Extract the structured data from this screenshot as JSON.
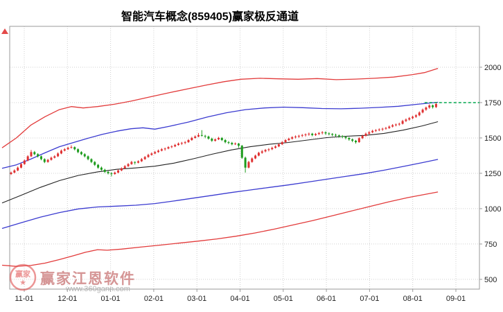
{
  "title": "智能汽车概念(859405)赢家极反通道",
  "watermark": {
    "brand": "赢家江恩软件",
    "url": "www.360gann.com",
    "stamp_label": "赢家"
  },
  "colors": {
    "up": "#df3031",
    "down": "#1c9b1c",
    "band_upper_red": "#e23a3a",
    "band_upper_blue": "#3a3ad0",
    "band_middle_black": "#222222",
    "band_lower_blue": "#3a3ad0",
    "band_lower_red": "#e23a3a",
    "forecast_green": "#00a94f",
    "grid": "#cfcfcf",
    "axis": "#9a9a9a",
    "tick_text": "#222222",
    "stamp_red": "#e05050"
  },
  "chart_data": {
    "type": "candlestick",
    "title": "智能汽车概念(859405)赢家极反通道",
    "xlabel": "",
    "ylabel": "",
    "grid": true,
    "legend_position": "none",
    "y_axis_side": "right",
    "x_ticks": [
      "11-01",
      "12-01",
      "01-01",
      "02-01",
      "03-01",
      "04-01",
      "05-01",
      "06-01",
      "07-01",
      "08-01",
      "09-01"
    ],
    "y_ticks": [
      2000,
      1750,
      1500,
      1250,
      1000,
      750,
      500
    ],
    "ylim": [
      431,
      2289
    ],
    "candles_ohlc_note": "each candle is [open,high,low,close], daily bars from late Oct to late Aug",
    "candles": [
      [
        1245,
        1262,
        1238,
        1255
      ],
      [
        1255,
        1278,
        1250,
        1270
      ],
      [
        1270,
        1298,
        1265,
        1290
      ],
      [
        1290,
        1322,
        1285,
        1315
      ],
      [
        1315,
        1348,
        1310,
        1340
      ],
      [
        1340,
        1378,
        1335,
        1370
      ],
      [
        1370,
        1415,
        1365,
        1400
      ],
      [
        1400,
        1408,
        1378,
        1385
      ],
      [
        1385,
        1392,
        1362,
        1370
      ],
      [
        1370,
        1376,
        1342,
        1350
      ],
      [
        1350,
        1356,
        1322,
        1330
      ],
      [
        1330,
        1352,
        1325,
        1345
      ],
      [
        1345,
        1368,
        1340,
        1360
      ],
      [
        1360,
        1378,
        1355,
        1370
      ],
      [
        1370,
        1398,
        1365,
        1390
      ],
      [
        1390,
        1418,
        1385,
        1410
      ],
      [
        1410,
        1428,
        1405,
        1420
      ],
      [
        1420,
        1438,
        1415,
        1430
      ],
      [
        1430,
        1448,
        1425,
        1435
      ],
      [
        1435,
        1440,
        1412,
        1420
      ],
      [
        1420,
        1426,
        1392,
        1400
      ],
      [
        1400,
        1406,
        1378,
        1385
      ],
      [
        1385,
        1392,
        1362,
        1370
      ],
      [
        1370,
        1376,
        1342,
        1350
      ],
      [
        1350,
        1356,
        1322,
        1330
      ],
      [
        1330,
        1336,
        1302,
        1310
      ],
      [
        1310,
        1316,
        1282,
        1290
      ],
      [
        1290,
        1298,
        1268,
        1275
      ],
      [
        1275,
        1282,
        1252,
        1260
      ],
      [
        1260,
        1266,
        1242,
        1250
      ],
      [
        1250,
        1258,
        1228,
        1245
      ],
      [
        1245,
        1262,
        1240,
        1255
      ],
      [
        1255,
        1278,
        1250,
        1270
      ],
      [
        1270,
        1292,
        1265,
        1285
      ],
      [
        1285,
        1308,
        1280,
        1300
      ],
      [
        1300,
        1322,
        1295,
        1315
      ],
      [
        1315,
        1338,
        1310,
        1330
      ],
      [
        1330,
        1334,
        1312,
        1325
      ],
      [
        1325,
        1342,
        1320,
        1335
      ],
      [
        1335,
        1358,
        1330,
        1350
      ],
      [
        1350,
        1372,
        1345,
        1365
      ],
      [
        1365,
        1388,
        1360,
        1380
      ],
      [
        1380,
        1398,
        1375,
        1390
      ],
      [
        1390,
        1408,
        1385,
        1400
      ],
      [
        1400,
        1418,
        1395,
        1410
      ],
      [
        1410,
        1428,
        1405,
        1420
      ],
      [
        1420,
        1432,
        1410,
        1425
      ],
      [
        1425,
        1442,
        1420,
        1435
      ],
      [
        1435,
        1448,
        1428,
        1440
      ],
      [
        1440,
        1458,
        1435,
        1450
      ],
      [
        1450,
        1468,
        1445,
        1460
      ],
      [
        1460,
        1472,
        1450,
        1465
      ],
      [
        1465,
        1478,
        1456,
        1470
      ],
      [
        1470,
        1492,
        1465,
        1485
      ],
      [
        1485,
        1508,
        1480,
        1500
      ],
      [
        1500,
        1518,
        1495,
        1510
      ],
      [
        1510,
        1535,
        1505,
        1520
      ],
      [
        1520,
        1555,
        1510,
        1515
      ],
      [
        1515,
        1522,
        1498,
        1510
      ],
      [
        1510,
        1516,
        1488,
        1495
      ],
      [
        1495,
        1502,
        1472,
        1480
      ],
      [
        1480,
        1496,
        1474,
        1490
      ],
      [
        1490,
        1508,
        1485,
        1500
      ],
      [
        1500,
        1506,
        1478,
        1485
      ],
      [
        1485,
        1492,
        1462,
        1470
      ],
      [
        1470,
        1478,
        1456,
        1465
      ],
      [
        1465,
        1472,
        1448,
        1455
      ],
      [
        1455,
        1468,
        1450,
        1460
      ],
      [
        1460,
        1465,
        1430,
        1445
      ],
      [
        1445,
        1450,
        1352,
        1360
      ],
      [
        1360,
        1368,
        1255,
        1290
      ],
      [
        1290,
        1338,
        1285,
        1330
      ],
      [
        1330,
        1362,
        1325,
        1355
      ],
      [
        1355,
        1382,
        1350,
        1375
      ],
      [
        1375,
        1402,
        1370,
        1395
      ],
      [
        1395,
        1415,
        1388,
        1405
      ],
      [
        1405,
        1422,
        1398,
        1415
      ],
      [
        1415,
        1428,
        1405,
        1420
      ],
      [
        1420,
        1438,
        1414,
        1430
      ],
      [
        1430,
        1448,
        1425,
        1440
      ],
      [
        1440,
        1462,
        1435,
        1455
      ],
      [
        1455,
        1478,
        1450,
        1470
      ],
      [
        1470,
        1492,
        1465,
        1485
      ],
      [
        1485,
        1502,
        1478,
        1495
      ],
      [
        1495,
        1512,
        1488,
        1505
      ],
      [
        1505,
        1518,
        1496,
        1510
      ],
      [
        1510,
        1522,
        1500,
        1515
      ],
      [
        1515,
        1528,
        1506,
        1520
      ],
      [
        1520,
        1532,
        1510,
        1525
      ],
      [
        1525,
        1538,
        1515,
        1530
      ],
      [
        1530,
        1536,
        1512,
        1520
      ],
      [
        1520,
        1535,
        1514,
        1528
      ],
      [
        1528,
        1542,
        1520,
        1535
      ],
      [
        1535,
        1548,
        1525,
        1540
      ],
      [
        1540,
        1546,
        1522,
        1532
      ],
      [
        1532,
        1540,
        1518,
        1528
      ],
      [
        1528,
        1534,
        1512,
        1522
      ],
      [
        1522,
        1530,
        1508,
        1518
      ],
      [
        1518,
        1524,
        1502,
        1512
      ],
      [
        1512,
        1520,
        1498,
        1508
      ],
      [
        1508,
        1514,
        1490,
        1500
      ],
      [
        1500,
        1506,
        1480,
        1490
      ],
      [
        1490,
        1496,
        1470,
        1480
      ],
      [
        1480,
        1486,
        1460,
        1470
      ],
      [
        1470,
        1505,
        1466,
        1498
      ],
      [
        1498,
        1522,
        1492,
        1515
      ],
      [
        1515,
        1538,
        1510,
        1530
      ],
      [
        1530,
        1548,
        1524,
        1540
      ],
      [
        1540,
        1558,
        1534,
        1550
      ],
      [
        1550,
        1562,
        1542,
        1555
      ],
      [
        1555,
        1568,
        1548,
        1560
      ],
      [
        1560,
        1572,
        1550,
        1565
      ],
      [
        1565,
        1578,
        1558,
        1570
      ],
      [
        1570,
        1588,
        1564,
        1580
      ],
      [
        1580,
        1598,
        1574,
        1590
      ],
      [
        1590,
        1602,
        1582,
        1595
      ],
      [
        1595,
        1608,
        1586,
        1600
      ],
      [
        1600,
        1628,
        1595,
        1620
      ],
      [
        1620,
        1638,
        1612,
        1630
      ],
      [
        1630,
        1648,
        1622,
        1640
      ],
      [
        1640,
        1658,
        1632,
        1650
      ],
      [
        1650,
        1668,
        1642,
        1660
      ],
      [
        1660,
        1688,
        1654,
        1680
      ],
      [
        1680,
        1708,
        1674,
        1700
      ],
      [
        1700,
        1722,
        1692,
        1715
      ],
      [
        1715,
        1738,
        1706,
        1730
      ],
      [
        1730,
        1736,
        1708,
        1718
      ],
      [
        1718,
        1748,
        1712,
        1740
      ]
    ],
    "bands": [
      {
        "name": "upper-rail-red",
        "color": "#e23a3a",
        "width": 1.3,
        "points": [
          [
            0,
            1430
          ],
          [
            0.03,
            1500
          ],
          [
            0.06,
            1590
          ],
          [
            0.09,
            1650
          ],
          [
            0.12,
            1700
          ],
          [
            0.145,
            1722
          ],
          [
            0.17,
            1712
          ],
          [
            0.2,
            1722
          ],
          [
            0.235,
            1738
          ],
          [
            0.27,
            1760
          ],
          [
            0.31,
            1790
          ],
          [
            0.35,
            1820
          ],
          [
            0.39,
            1848
          ],
          [
            0.43,
            1875
          ],
          [
            0.465,
            1898
          ],
          [
            0.5,
            1915
          ],
          [
            0.54,
            1922
          ],
          [
            0.58,
            1918
          ],
          [
            0.62,
            1915
          ],
          [
            0.66,
            1920
          ],
          [
            0.7,
            1912
          ],
          [
            0.74,
            1916
          ],
          [
            0.78,
            1922
          ],
          [
            0.82,
            1930
          ],
          [
            0.86,
            1948
          ],
          [
            0.885,
            1962
          ],
          [
            0.913,
            1992
          ]
        ]
      },
      {
        "name": "upper-channel-blue",
        "color": "#3a3ad0",
        "width": 1.3,
        "points": [
          [
            0,
            1285
          ],
          [
            0.03,
            1310
          ],
          [
            0.06,
            1350
          ],
          [
            0.09,
            1395
          ],
          [
            0.12,
            1438
          ],
          [
            0.15,
            1468
          ],
          [
            0.18,
            1498
          ],
          [
            0.21,
            1525
          ],
          [
            0.24,
            1548
          ],
          [
            0.27,
            1565
          ],
          [
            0.295,
            1572
          ],
          [
            0.32,
            1562
          ],
          [
            0.35,
            1582
          ],
          [
            0.39,
            1612
          ],
          [
            0.43,
            1648
          ],
          [
            0.47,
            1678
          ],
          [
            0.51,
            1700
          ],
          [
            0.55,
            1712
          ],
          [
            0.59,
            1718
          ],
          [
            0.63,
            1714
          ],
          [
            0.67,
            1708
          ],
          [
            0.71,
            1706
          ],
          [
            0.75,
            1710
          ],
          [
            0.79,
            1716
          ],
          [
            0.83,
            1724
          ],
          [
            0.87,
            1738
          ],
          [
            0.913,
            1752
          ]
        ]
      },
      {
        "name": "middle-line-black",
        "color": "#222222",
        "width": 1.1,
        "points": [
          [
            0,
            1040
          ],
          [
            0.04,
            1095
          ],
          [
            0.08,
            1150
          ],
          [
            0.12,
            1198
          ],
          [
            0.16,
            1235
          ],
          [
            0.2,
            1260
          ],
          [
            0.24,
            1278
          ],
          [
            0.28,
            1288
          ],
          [
            0.32,
            1300
          ],
          [
            0.36,
            1322
          ],
          [
            0.4,
            1352
          ],
          [
            0.44,
            1385
          ],
          [
            0.48,
            1415
          ],
          [
            0.52,
            1438
          ],
          [
            0.56,
            1455
          ],
          [
            0.6,
            1468
          ],
          [
            0.64,
            1485
          ],
          [
            0.68,
            1502
          ],
          [
            0.72,
            1512
          ],
          [
            0.76,
            1518
          ],
          [
            0.8,
            1532
          ],
          [
            0.84,
            1555
          ],
          [
            0.88,
            1585
          ],
          [
            0.913,
            1615
          ]
        ]
      },
      {
        "name": "lower-channel-blue",
        "color": "#3a3ad0",
        "width": 1.3,
        "points": [
          [
            0,
            860
          ],
          [
            0.04,
            900
          ],
          [
            0.08,
            940
          ],
          [
            0.12,
            972
          ],
          [
            0.16,
            998
          ],
          [
            0.2,
            1012
          ],
          [
            0.24,
            1018
          ],
          [
            0.28,
            1024
          ],
          [
            0.32,
            1036
          ],
          [
            0.36,
            1054
          ],
          [
            0.4,
            1074
          ],
          [
            0.44,
            1094
          ],
          [
            0.48,
            1114
          ],
          [
            0.52,
            1132
          ],
          [
            0.56,
            1150
          ],
          [
            0.6,
            1168
          ],
          [
            0.64,
            1188
          ],
          [
            0.68,
            1208
          ],
          [
            0.72,
            1228
          ],
          [
            0.76,
            1248
          ],
          [
            0.8,
            1272
          ],
          [
            0.84,
            1298
          ],
          [
            0.88,
            1325
          ],
          [
            0.913,
            1348
          ]
        ]
      },
      {
        "name": "lower-rail-red",
        "color": "#e23a3a",
        "width": 1.3,
        "points": [
          [
            0,
            600
          ],
          [
            0.03,
            592
          ],
          [
            0.06,
            598
          ],
          [
            0.09,
            615
          ],
          [
            0.12,
            640
          ],
          [
            0.15,
            668
          ],
          [
            0.175,
            692
          ],
          [
            0.2,
            710
          ],
          [
            0.22,
            706
          ],
          [
            0.25,
            714
          ],
          [
            0.29,
            728
          ],
          [
            0.33,
            742
          ],
          [
            0.37,
            756
          ],
          [
            0.41,
            770
          ],
          [
            0.45,
            786
          ],
          [
            0.49,
            805
          ],
          [
            0.53,
            828
          ],
          [
            0.57,
            855
          ],
          [
            0.61,
            885
          ],
          [
            0.65,
            915
          ],
          [
            0.69,
            948
          ],
          [
            0.73,
            982
          ],
          [
            0.77,
            1015
          ],
          [
            0.81,
            1048
          ],
          [
            0.85,
            1078
          ],
          [
            0.913,
            1118
          ]
        ]
      }
    ],
    "forecast_line": {
      "name": "forecast-dashed-green",
      "value": 1750,
      "from_frac": 0.885,
      "to_frac": 1.0
    }
  }
}
